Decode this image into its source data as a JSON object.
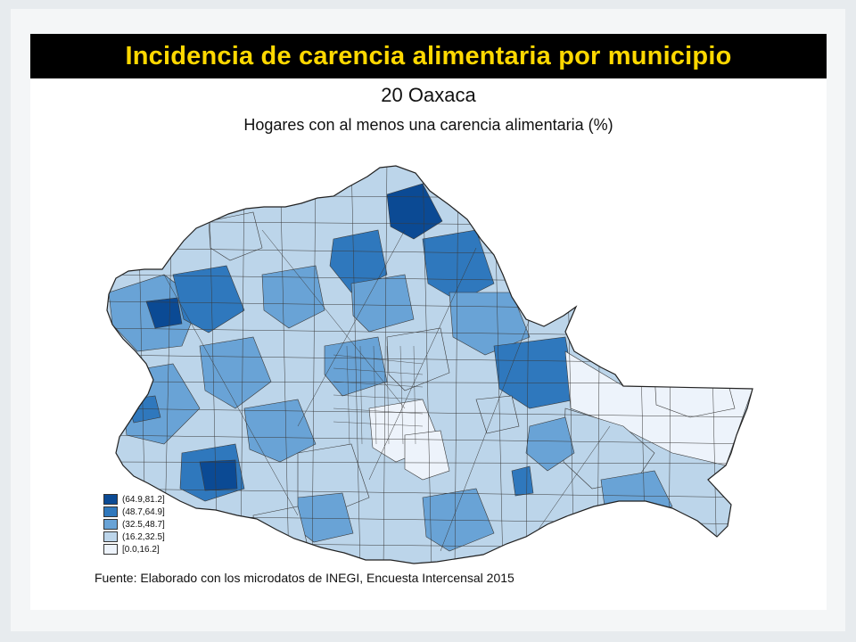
{
  "header": {
    "title": "Incidencia de carencia alimentaria por municipio"
  },
  "map": {
    "title": "20 Oaxaca",
    "subtitle": "Hogares con al menos una carencia alimentaria (%)",
    "source": "Fuente: Elaborado con los microdatos de INEGI, Encuesta Intercensal 2015",
    "legend": [
      {
        "label": "(64.9,81.2]",
        "color": "#0b4a94"
      },
      {
        "label": "(48.7,64.9]",
        "color": "#2f78bd"
      },
      {
        "label": "(32.5,48.7]",
        "color": "#69a3d6"
      },
      {
        "label": "(16.2,32.5]",
        "color": "#bcd5ea"
      },
      {
        "label": "[0.0,16.2]",
        "color": "#edf3fb"
      }
    ]
  }
}
